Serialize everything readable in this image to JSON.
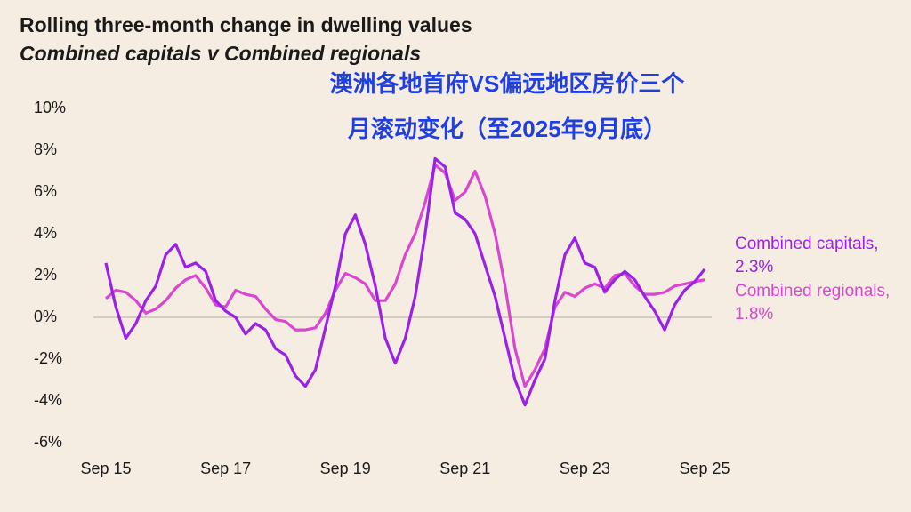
{
  "chart_data": {
    "type": "line",
    "title": "Rolling three-month change in dwelling values",
    "subtitle": "Combined capitals v Combined regionals",
    "annotations": [
      "澳洲各地首府VS偏远地区房价三个",
      "月滚动变化（至2025年9月底）"
    ],
    "categories": [
      "Sep 15",
      null,
      null,
      null,
      null,
      null,
      null,
      null,
      null,
      null,
      null,
      null,
      "Sep 17",
      null,
      null,
      null,
      null,
      null,
      null,
      null,
      null,
      null,
      null,
      null,
      "Sep 19",
      null,
      null,
      null,
      null,
      null,
      null,
      null,
      null,
      null,
      null,
      null,
      "Sep 21",
      null,
      null,
      null,
      null,
      null,
      null,
      null,
      null,
      null,
      null,
      null,
      "Sep 23",
      null,
      null,
      null,
      null,
      null,
      null,
      null,
      null,
      null,
      null,
      null,
      "Sep 25"
    ],
    "series": [
      {
        "name": "Combined capitals, 2.3%",
        "color": "#9b20e8",
        "values": [
          2.6,
          0.5,
          -1.0,
          -0.3,
          0.8,
          1.5,
          3.0,
          3.5,
          2.4,
          2.6,
          2.2,
          0.8,
          0.3,
          0,
          -0.8,
          -0.3,
          -0.6,
          -1.5,
          -1.8,
          -2.8,
          -3.3,
          -2.5,
          -0.5,
          1.5,
          4.0,
          4.9,
          3.5,
          1.5,
          -1.0,
          -2.2,
          -1.0,
          1.0,
          4.0,
          7.6,
          7.2,
          5.0,
          4.7,
          4.0,
          2.5,
          1.0,
          -1.0,
          -3.0,
          -4.2,
          -3.0,
          -2.0,
          0.8,
          3.0,
          3.8,
          2.6,
          2.4,
          1.2,
          1.8,
          2.2,
          1.8,
          1.0,
          0.3,
          -0.6,
          0.6,
          1.3,
          1.7,
          2.3
        ]
      },
      {
        "name": "Combined regionals, 1.8%",
        "color": "#d946d0",
        "values": [
          0.9,
          1.3,
          1.2,
          0.8,
          0.2,
          0.4,
          0.8,
          1.4,
          1.8,
          2.0,
          1.4,
          0.6,
          0.5,
          1.3,
          1.1,
          1.0,
          0.4,
          -0.1,
          -0.2,
          -0.6,
          -0.6,
          -0.5,
          0.2,
          1.3,
          2.1,
          1.9,
          1.6,
          0.8,
          0.8,
          1.6,
          3.0,
          4.0,
          5.5,
          7.3,
          6.9,
          5.6,
          6.0,
          7.0,
          5.8,
          4.0,
          1.5,
          -1.5,
          -3.3,
          -2.5,
          -1.5,
          0.5,
          1.2,
          1.0,
          1.4,
          1.6,
          1.4,
          2.0,
          2.1,
          1.5,
          1.1,
          1.1,
          1.2,
          1.5,
          1.6,
          1.7,
          1.8
        ]
      }
    ],
    "ylim": [
      -6,
      10
    ],
    "yticks": [
      {
        "value": -6,
        "label": "-6%"
      },
      {
        "value": -4,
        "label": "-4%"
      },
      {
        "value": -2,
        "label": "-2%"
      },
      {
        "value": 0,
        "label": "0%"
      },
      {
        "value": 2,
        "label": "2%"
      },
      {
        "value": 4,
        "label": "4%"
      },
      {
        "value": 6,
        "label": "6%"
      },
      {
        "value": 8,
        "label": "8%"
      },
      {
        "value": 10,
        "label": "10%"
      }
    ],
    "zero_line": true
  }
}
